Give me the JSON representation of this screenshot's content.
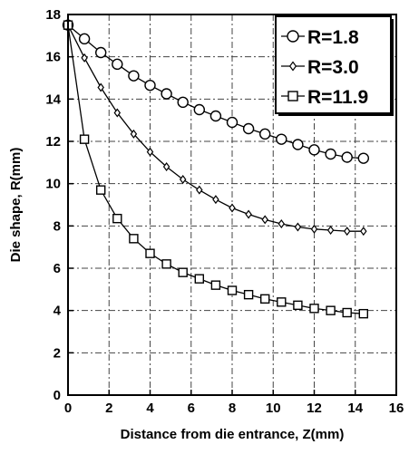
{
  "chart_data": {
    "type": "line",
    "title": "",
    "xlabel": "Distance from die entrance, Z(mm)",
    "ylabel": "Die shape, R(mm)",
    "xlim": [
      0,
      16
    ],
    "ylim": [
      0,
      18
    ],
    "xticks": [
      "0",
      "2",
      "4",
      "6",
      "8",
      "10",
      "12",
      "14",
      "16"
    ],
    "yticks": [
      "0",
      "2",
      "4",
      "6",
      "8",
      "10",
      "12",
      "14",
      "16",
      "18"
    ],
    "grid": true,
    "legend_position": "top-right",
    "series": [
      {
        "name": "R=1.8",
        "marker": "circle",
        "x": [
          0,
          0.8,
          1.6,
          2.4,
          3.2,
          4.0,
          4.8,
          5.6,
          6.4,
          7.2,
          8.0,
          8.8,
          9.6,
          10.4,
          11.2,
          12.0,
          12.8,
          13.6,
          14.4
        ],
        "y": [
          17.5,
          16.85,
          16.2,
          15.65,
          15.1,
          14.65,
          14.25,
          13.85,
          13.5,
          13.2,
          12.9,
          12.6,
          12.35,
          12.1,
          11.85,
          11.6,
          11.4,
          11.25,
          11.2
        ]
      },
      {
        "name": "R=3.0",
        "marker": "diamond",
        "x": [
          0,
          0.8,
          1.6,
          2.4,
          3.2,
          4.0,
          4.8,
          5.6,
          6.4,
          7.2,
          8.0,
          8.8,
          9.6,
          10.4,
          11.2,
          12.0,
          12.8,
          13.6,
          14.4
        ],
        "y": [
          17.5,
          15.95,
          14.55,
          13.35,
          12.35,
          11.5,
          10.8,
          10.2,
          9.7,
          9.25,
          8.85,
          8.55,
          8.3,
          8.1,
          7.95,
          7.85,
          7.8,
          7.75,
          7.75
        ]
      },
      {
        "name": "R=11.9",
        "marker": "square",
        "x": [
          0,
          0.8,
          1.6,
          2.4,
          3.2,
          4.0,
          4.8,
          5.6,
          6.4,
          7.2,
          8.0,
          8.8,
          9.6,
          10.4,
          11.2,
          12.0,
          12.8,
          13.6,
          14.4
        ],
        "y": [
          17.5,
          12.1,
          9.7,
          8.35,
          7.4,
          6.7,
          6.2,
          5.8,
          5.5,
          5.2,
          4.95,
          4.75,
          4.55,
          4.4,
          4.25,
          4.1,
          4.0,
          3.9,
          3.85
        ]
      }
    ]
  }
}
